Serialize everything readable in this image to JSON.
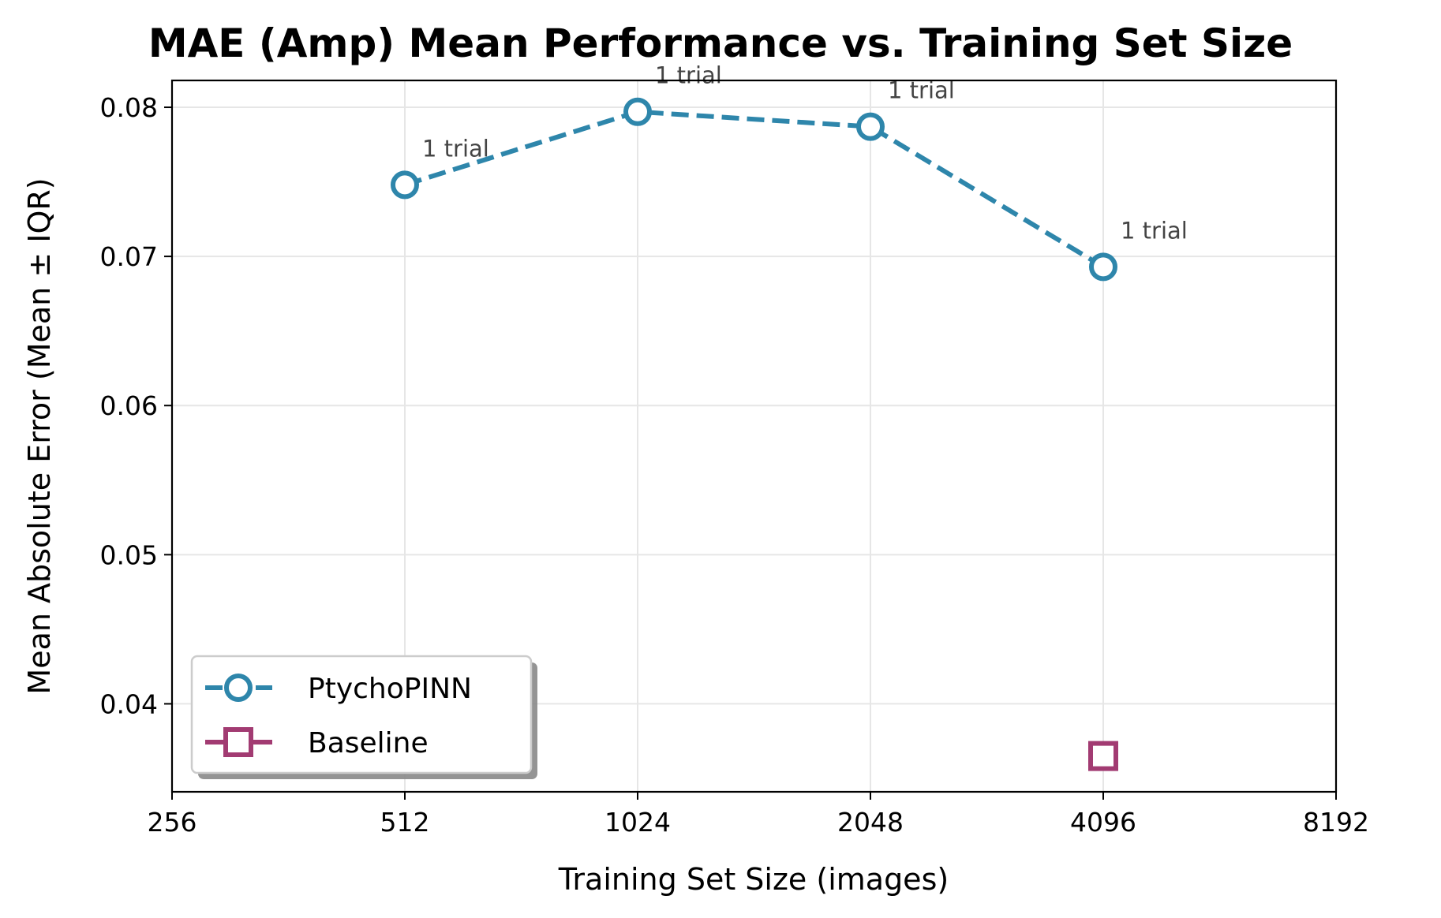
{
  "chart_data": {
    "type": "line",
    "title": "MAE (Amp) Mean Performance vs. Training Set Size",
    "xlabel": "Training Set Size (images)",
    "ylabel": "Mean Absolute Error (Mean ± IQR)",
    "x_scale": "log2",
    "xlim": [
      256,
      8192
    ],
    "ylim": [
      0.0341,
      0.0818
    ],
    "x_ticks": [
      256,
      512,
      1024,
      2048,
      4096,
      8192
    ],
    "x_tick_labels": [
      "256",
      "512",
      "1024",
      "2048",
      "4096",
      "8192"
    ],
    "y_ticks": [
      0.04,
      0.05,
      0.06,
      0.07,
      0.08
    ],
    "y_tick_labels": [
      "0.04",
      "0.05",
      "0.06",
      "0.07",
      "0.08"
    ],
    "grid": true,
    "legend_placement": "lower-left",
    "series": [
      {
        "name": "PtychoPINN",
        "color": "#2e86ab",
        "marker": "circle",
        "line": "dashed",
        "x": [
          512,
          1024,
          2048,
          4096
        ],
        "y": [
          0.0748,
          0.0797,
          0.0787,
          0.0693
        ],
        "annotations": [
          "1 trial",
          "1 trial",
          "1 trial",
          "1 trial"
        ]
      },
      {
        "name": "Baseline",
        "color": "#a23b72",
        "marker": "square",
        "line": "solid",
        "x": [
          4096
        ],
        "y": [
          0.0365
        ],
        "annotations": []
      }
    ]
  }
}
